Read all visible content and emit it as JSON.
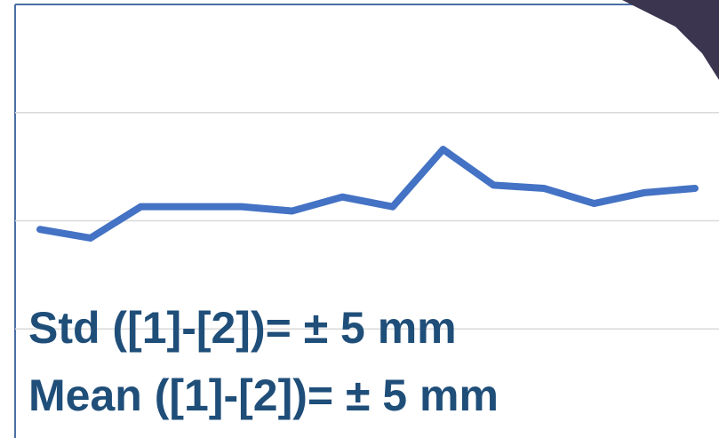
{
  "chart_data": {
    "type": "line",
    "categories": [
      null,
      null,
      null,
      null,
      null,
      null,
      null,
      null,
      null,
      null,
      null,
      null,
      null,
      null
    ],
    "values": [
      1.92,
      1.84,
      2.13,
      2.13,
      2.13,
      2.09,
      2.22,
      2.13,
      2.66,
      2.33,
      2.3,
      2.16,
      2.26,
      2.3
    ],
    "color": "#4472c4",
    "ylim": [
      0,
      4
    ],
    "yticks": [
      1,
      2,
      3
    ],
    "grid": true,
    "annotations": [
      "Std ([1]-[2])= ± 5 mm",
      "Mean ([1]-[2])= ± 5 mm"
    ]
  }
}
